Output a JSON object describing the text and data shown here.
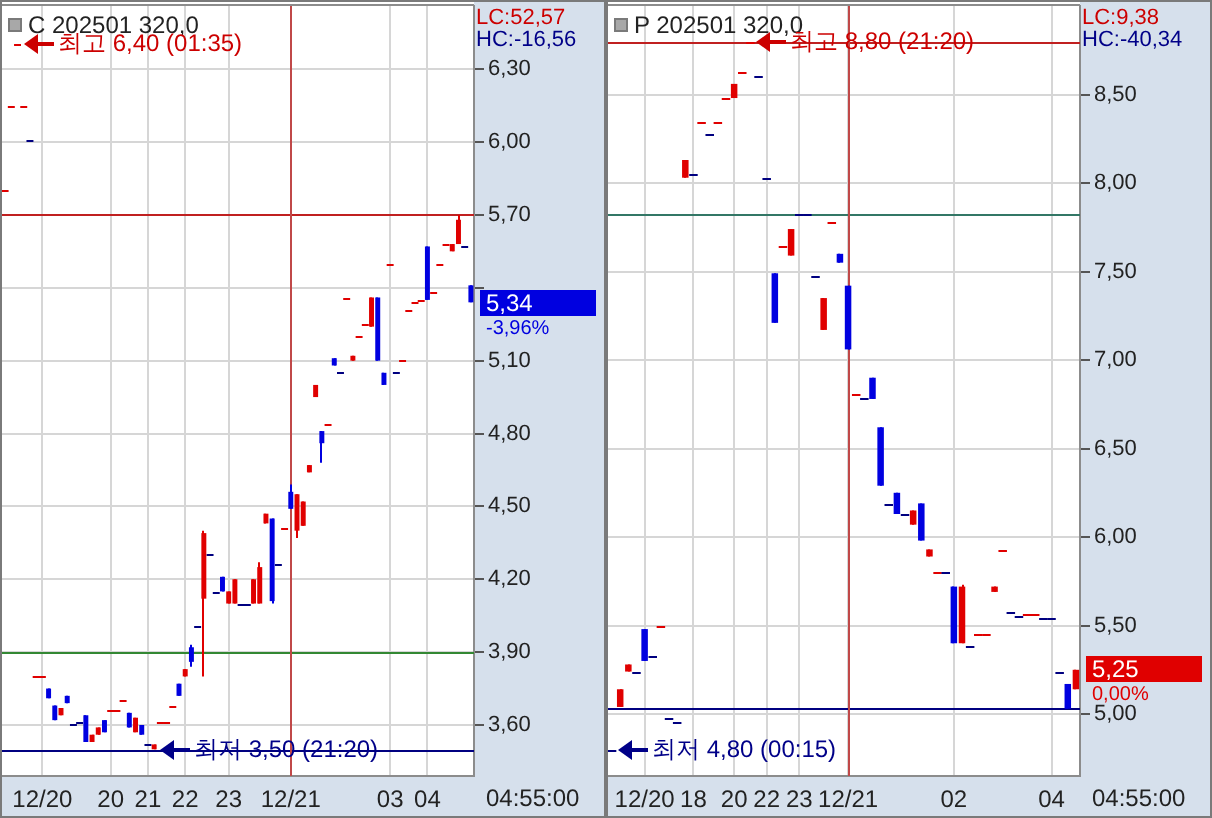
{
  "chart_data": [
    {
      "type": "candlestick",
      "title": "C 202501 320,0",
      "categories": [
        null,
        null,
        null,
        null,
        null,
        null,
        "12/20",
        null,
        null,
        null,
        null,
        null,
        null,
        null,
        null,
        null,
        null,
        "20",
        null,
        null,
        null,
        null,
        null,
        "21",
        null,
        null,
        null,
        null,
        null,
        "22",
        null,
        null,
        null,
        null,
        null,
        null,
        "23",
        null,
        null,
        null,
        null,
        null,
        null,
        null,
        null,
        null,
        "12/21",
        null,
        null,
        null,
        null,
        null,
        null,
        null,
        null,
        null,
        null,
        null,
        null,
        null,
        null,
        null,
        "03",
        null,
        null,
        null,
        null,
        null,
        "04",
        null,
        null,
        null,
        null,
        null,
        null,
        null
      ],
      "ohlc": [
        [
          5.8,
          5.8,
          5.8,
          5.8
        ],
        [
          6.15,
          6.15,
          6.15,
          6.15
        ],
        [
          6.4,
          6.4,
          6.4,
          6.4
        ],
        [
          6.15,
          6.15,
          6.15,
          6.15
        ],
        [
          6.01,
          6.01,
          6.01,
          6.01
        ],
        [
          3.8,
          3.8,
          3.8,
          3.8
        ],
        [
          3.8,
          3.8,
          3.8,
          3.8
        ],
        [
          3.75,
          3.75,
          3.71,
          3.71
        ],
        [
          3.68,
          3.68,
          3.62,
          3.62
        ],
        [
          3.64,
          3.67,
          3.64,
          3.67
        ],
        [
          3.72,
          3.72,
          3.69,
          3.69
        ],
        [
          3.6,
          3.6,
          3.6,
          3.6
        ],
        [
          3.61,
          3.61,
          3.61,
          3.61
        ],
        [
          3.64,
          3.64,
          3.53,
          3.53
        ],
        [
          3.53,
          3.56,
          3.53,
          3.56
        ],
        [
          3.56,
          3.59,
          3.56,
          3.59
        ],
        [
          3.62,
          3.62,
          3.57,
          3.57
        ],
        [
          3.66,
          3.66,
          3.66,
          3.66
        ],
        [
          3.66,
          3.66,
          3.66,
          3.66
        ],
        [
          3.7,
          3.7,
          3.7,
          3.7
        ],
        [
          3.65,
          3.65,
          3.59,
          3.59
        ],
        [
          3.57,
          3.63,
          3.57,
          3.63
        ],
        [
          3.6,
          3.6,
          3.56,
          3.56
        ],
        [
          3.52,
          3.52,
          3.52,
          3.52
        ],
        [
          3.5,
          3.52,
          3.5,
          3.52
        ],
        [
          3.61,
          3.61,
          3.61,
          3.61
        ],
        [
          3.61,
          3.61,
          3.61,
          3.61
        ],
        [
          3.68,
          3.68,
          3.68,
          3.68
        ],
        [
          3.77,
          3.77,
          3.72,
          3.72
        ],
        [
          3.8,
          3.83,
          3.8,
          3.83
        ],
        [
          3.92,
          3.93,
          3.84,
          3.86
        ],
        [
          4.01,
          4.01,
          4.01,
          4.01
        ],
        [
          4.12,
          4.4,
          3.8,
          4.39
        ],
        [
          4.3,
          4.3,
          4.3,
          4.3
        ],
        [
          4.15,
          4.15,
          4.15,
          4.15
        ],
        [
          4.21,
          4.21,
          4.15,
          4.15
        ],
        [
          4.1,
          4.15,
          4.1,
          4.15
        ],
        [
          4.1,
          4.2,
          4.1,
          4.2
        ],
        [
          4.1,
          4.1,
          4.1,
          4.1
        ],
        [
          4.1,
          4.1,
          4.1,
          4.1
        ],
        [
          4.1,
          4.2,
          4.1,
          4.2
        ],
        [
          4.1,
          4.27,
          4.1,
          4.25
        ],
        [
          4.43,
          4.47,
          4.43,
          4.47
        ],
        [
          4.45,
          4.45,
          4.1,
          4.11
        ],
        [
          4.26,
          4.26,
          4.26,
          4.26
        ],
        [
          4.41,
          4.41,
          4.41,
          4.41
        ],
        [
          4.56,
          4.59,
          4.49,
          4.49
        ],
        [
          4.4,
          4.55,
          4.37,
          4.55
        ],
        [
          4.42,
          4.52,
          4.42,
          4.52
        ],
        [
          4.64,
          4.67,
          4.64,
          4.67
        ],
        [
          4.95,
          5.0,
          4.95,
          5.0
        ],
        [
          4.81,
          4.81,
          4.68,
          4.76
        ],
        [
          4.84,
          4.84,
          4.84,
          4.84
        ],
        [
          5.11,
          5.11,
          5.08,
          5.08
        ],
        [
          5.05,
          5.05,
          5.05,
          5.05
        ],
        [
          5.36,
          5.36,
          5.36,
          5.36
        ],
        [
          5.1,
          5.12,
          5.1,
          5.12
        ],
        [
          5.2,
          5.2,
          5.2,
          5.2
        ],
        [
          5.25,
          5.25,
          5.25,
          5.25
        ],
        [
          5.24,
          5.36,
          5.24,
          5.36
        ],
        [
          5.36,
          5.36,
          5.1,
          5.1
        ],
        [
          5.05,
          5.05,
          5.0,
          5.0
        ],
        [
          5.5,
          5.5,
          5.5,
          5.5
        ],
        [
          5.05,
          5.05,
          5.05,
          5.05
        ],
        [
          5.1,
          5.1,
          5.1,
          5.1
        ],
        [
          5.31,
          5.31,
          5.31,
          5.31
        ],
        [
          5.34,
          5.34,
          5.34,
          5.34
        ],
        [
          5.35,
          5.35,
          5.35,
          5.35
        ],
        [
          5.57,
          5.57,
          5.35,
          5.35
        ],
        [
          5.38,
          5.38,
          5.38,
          5.38
        ],
        [
          5.5,
          5.5,
          5.5,
          5.5
        ],
        [
          5.58,
          5.58,
          5.58,
          5.58
        ],
        [
          5.55,
          5.58,
          5.55,
          5.58
        ],
        [
          5.58,
          5.7,
          5.58,
          5.68
        ],
        [
          5.57,
          5.57,
          5.57,
          5.57
        ],
        [
          5.41,
          5.41,
          5.34,
          5.34
        ]
      ],
      "colors": [
        "#e00000",
        "#e00000",
        "#e00000",
        "#e00000",
        "#000080",
        "#e00000",
        "#e00000",
        "#0000e0",
        "#0000e0",
        "#e00000",
        "#0000e0",
        "#000080",
        "#000080",
        "#0000e0",
        "#e00000",
        "#e00000",
        "#0000e0",
        "#e00000",
        "#e00000",
        "#e00000",
        "#0000e0",
        "#e00000",
        "#0000e0",
        "#000080",
        "#e00000",
        "#e00000",
        "#e00000",
        "#e00000",
        "#0000e0",
        "#e00000",
        "#0000e0",
        "#000080",
        "#e00000",
        "#000080",
        "#000080",
        "#0000e0",
        "#e00000",
        "#e00000",
        "#000080",
        "#000080",
        "#e00000",
        "#e00000",
        "#e00000",
        "#0000e0",
        "#000080",
        "#e00000",
        "#0000e0",
        "#e00000",
        "#e00000",
        "#e00000",
        "#e00000",
        "#0000e0",
        "#e00000",
        "#0000e0",
        "#000080",
        "#e00000",
        "#e00000",
        "#e00000",
        "#e00000",
        "#e00000",
        "#0000e0",
        "#0000e0",
        "#e00000",
        "#000080",
        "#e00000",
        "#e00000",
        "#e00000",
        "#e00000",
        "#0000e0",
        "#e00000",
        "#e00000",
        "#e00000",
        "#e00000",
        "#e00000",
        "#000080",
        "#0000e0"
      ],
      "ylim": [
        3.39,
        6.56
      ],
      "yticks": [
        {
          "value": 3.6,
          "label": "3,60"
        },
        {
          "value": 3.9,
          "label": "3,90"
        },
        {
          "value": 4.2,
          "label": "4,20"
        },
        {
          "value": 4.5,
          "label": "4,50"
        },
        {
          "value": 4.8,
          "label": "4,80"
        },
        {
          "value": 5.1,
          "label": "5,10"
        },
        {
          "value": 5.4,
          "label": null
        },
        {
          "value": 5.7,
          "label": "5,70"
        },
        {
          "value": 6.0,
          "label": "6,00"
        },
        {
          "value": 6.3,
          "label": "6,30"
        }
      ],
      "grid": true,
      "ref_lines": [
        {
          "axis": "y",
          "value": 5.7,
          "color": "#c02020"
        },
        {
          "axis": "y",
          "value": 3.9,
          "color": "#338833"
        },
        {
          "axis": "y",
          "value": 3.5,
          "color": "#000080"
        },
        {
          "axis": "x",
          "value": "12/21",
          "color": "#c04848"
        }
      ],
      "annotations": [
        "LC:52,57",
        "HC:-16,56",
        "최고 6,40 (01:35)",
        "최저 3,50 (21:20)",
        "5,34",
        "-3,96%",
        "04:55:00"
      ]
    },
    {
      "type": "candlestick",
      "title": "P 202501 320,0",
      "categories": [
        null,
        null,
        null,
        null,
        "12/20",
        null,
        null,
        null,
        null,
        null,
        "18",
        null,
        null,
        null,
        null,
        "20",
        null,
        null,
        null,
        "22",
        null,
        null,
        null,
        "23",
        null,
        null,
        null,
        null,
        null,
        "12/21",
        null,
        null,
        null,
        null,
        null,
        null,
        null,
        null,
        null,
        null,
        null,
        null,
        "02",
        null,
        null,
        null,
        null,
        null,
        null,
        null,
        null,
        null,
        null,
        null,
        "04",
        null,
        null,
        null
      ],
      "ohlc": [
        [
          4.8,
          4.8,
          4.8,
          4.8
        ],
        [
          5.04,
          5.14,
          5.04,
          5.14
        ],
        [
          5.24,
          5.28,
          5.24,
          5.28
        ],
        [
          5.24,
          5.24,
          5.24,
          5.24
        ],
        [
          5.48,
          5.48,
          5.3,
          5.3
        ],
        [
          5.33,
          5.33,
          5.33,
          5.33
        ],
        [
          5.5,
          5.5,
          5.5,
          5.5
        ],
        [
          4.98,
          4.98,
          4.98,
          4.98
        ],
        [
          4.96,
          4.96,
          4.96,
          4.96
        ],
        [
          8.03,
          8.13,
          8.03,
          8.13
        ],
        [
          8.05,
          8.05,
          8.05,
          8.05
        ],
        [
          8.34,
          8.34,
          8.34,
          8.34
        ],
        [
          8.28,
          8.28,
          8.28,
          8.28
        ],
        [
          8.35,
          8.35,
          8.35,
          8.35
        ],
        [
          8.48,
          8.48,
          8.48,
          8.48
        ],
        [
          8.48,
          8.56,
          8.48,
          8.56
        ],
        [
          8.63,
          8.63,
          8.63,
          8.63
        ],
        [
          8.8,
          8.8,
          8.8,
          8.8
        ],
        [
          8.61,
          8.61,
          8.61,
          8.61
        ],
        [
          8.03,
          8.03,
          8.03,
          8.03
        ],
        [
          7.49,
          7.49,
          7.21,
          7.21
        ],
        [
          7.64,
          7.64,
          7.64,
          7.64
        ],
        [
          7.59,
          7.74,
          7.59,
          7.74
        ],
        [
          7.83,
          7.83,
          7.83,
          7.83
        ],
        [
          7.83,
          7.83,
          7.83,
          7.83
        ],
        [
          7.48,
          7.48,
          7.48,
          7.48
        ],
        [
          7.17,
          7.35,
          7.17,
          7.35
        ],
        [
          7.78,
          7.78,
          7.78,
          7.78
        ],
        [
          7.6,
          7.6,
          7.55,
          7.55
        ],
        [
          7.42,
          7.42,
          7.06,
          7.06
        ],
        [
          6.81,
          6.81,
          6.81,
          6.81
        ],
        [
          6.78,
          6.78,
          6.78,
          6.78
        ],
        [
          6.9,
          6.9,
          6.78,
          6.78
        ],
        [
          6.62,
          6.62,
          6.29,
          6.29
        ],
        [
          6.19,
          6.19,
          6.19,
          6.19
        ],
        [
          6.25,
          6.25,
          6.13,
          6.13
        ],
        [
          6.13,
          6.13,
          6.13,
          6.13
        ],
        [
          6.07,
          6.15,
          6.07,
          6.15
        ],
        [
          6.19,
          6.19,
          5.98,
          5.98
        ],
        [
          5.89,
          5.93,
          5.89,
          5.93
        ],
        [
          5.8,
          5.8,
          5.8,
          5.8
        ],
        [
          5.8,
          5.8,
          5.8,
          5.8
        ],
        [
          5.72,
          5.72,
          5.4,
          5.4
        ],
        [
          5.4,
          5.73,
          5.4,
          5.72
        ],
        [
          5.38,
          5.38,
          5.38,
          5.38
        ],
        [
          5.45,
          5.45,
          5.45,
          5.45
        ],
        [
          5.45,
          5.45,
          5.45,
          5.45
        ],
        [
          5.69,
          5.72,
          5.69,
          5.72
        ],
        [
          5.93,
          5.93,
          5.93,
          5.93
        ],
        [
          5.58,
          5.58,
          5.58,
          5.58
        ],
        [
          5.55,
          5.55,
          5.55,
          5.55
        ],
        [
          5.56,
          5.56,
          5.56,
          5.56
        ],
        [
          5.56,
          5.56,
          5.56,
          5.56
        ],
        [
          5.54,
          5.54,
          5.54,
          5.54
        ],
        [
          5.54,
          5.54,
          5.54,
          5.54
        ],
        [
          5.24,
          5.24,
          5.24,
          5.24
        ],
        [
          5.17,
          5.17,
          5.03,
          5.03
        ],
        [
          5.14,
          5.25,
          5.14,
          5.25
        ]
      ],
      "colors": [
        "#000080",
        "#e00000",
        "#e00000",
        "#000080",
        "#0000e0",
        "#000080",
        "#e00000",
        "#000080",
        "#000080",
        "#e00000",
        "#000080",
        "#e00000",
        "#000080",
        "#e00000",
        "#e00000",
        "#e00000",
        "#e00000",
        "#e00000",
        "#000080",
        "#000080",
        "#0000e0",
        "#e00000",
        "#e00000",
        "#000080",
        "#000080",
        "#000080",
        "#e00000",
        "#e00000",
        "#0000e0",
        "#0000e0",
        "#e00000",
        "#000080",
        "#0000e0",
        "#0000e0",
        "#000080",
        "#0000e0",
        "#000080",
        "#e00000",
        "#0000e0",
        "#e00000",
        "#e00000",
        "#000080",
        "#0000e0",
        "#e00000",
        "#000080",
        "#e00000",
        "#e00000",
        "#e00000",
        "#e00000",
        "#000080",
        "#000080",
        "#e00000",
        "#e00000",
        "#000080",
        "#000080",
        "#000080",
        "#0000e0",
        "#e00000"
      ],
      "ylim": [
        4.65,
        9.0
      ],
      "yticks": [
        {
          "value": 5.0,
          "label": "5,00"
        },
        {
          "value": 5.5,
          "label": "5,50"
        },
        {
          "value": 6.0,
          "label": "6,00"
        },
        {
          "value": 6.5,
          "label": "6,50"
        },
        {
          "value": 7.0,
          "label": "7,00"
        },
        {
          "value": 7.5,
          "label": "7,50"
        },
        {
          "value": 8.0,
          "label": "8,00"
        },
        {
          "value": 8.5,
          "label": "8,50"
        }
      ],
      "grid": true,
      "ref_lines": [
        {
          "axis": "y",
          "value": 8.8,
          "color": "#c02020"
        },
        {
          "axis": "y",
          "value": 7.83,
          "color": "#337766"
        },
        {
          "axis": "y",
          "value": 5.03,
          "color": "#000080"
        },
        {
          "axis": "x",
          "value": "12/21",
          "color": "#c04848"
        }
      ],
      "annotations": [
        "LC:9,38",
        "HC:-40,34",
        "최고 8,80 (21:20)",
        "최저 4,80 (00:15)",
        "5,25",
        "0,00%",
        "04:55:00"
      ]
    }
  ]
}
